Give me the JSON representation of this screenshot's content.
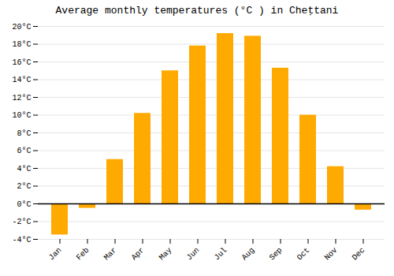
{
  "chart_data": {
    "type": "bar",
    "title": "Average monthly temperatures (°C ) in Cheṭtani",
    "categories": [
      "Jan",
      "Feb",
      "Mar",
      "Apr",
      "May",
      "Jun",
      "Jul",
      "Aug",
      "Sep",
      "Oct",
      "Nov",
      "Dec"
    ],
    "values": [
      -3.5,
      -0.5,
      5.0,
      10.2,
      15.0,
      17.8,
      19.2,
      18.9,
      15.3,
      10.0,
      4.2,
      -0.7
    ],
    "color": "#FFAA00",
    "ylim": [
      -4,
      20
    ],
    "yticks": [
      {
        "value": -4,
        "label": "-4°C"
      },
      {
        "value": -2,
        "label": "-2°C"
      },
      {
        "value": 0,
        "label": "0°C"
      },
      {
        "value": 2,
        "label": "2°C"
      },
      {
        "value": 4,
        "label": "4°C"
      },
      {
        "value": 6,
        "label": "6°C"
      },
      {
        "value": 8,
        "label": "8°C"
      },
      {
        "value": 10,
        "label": "10°C"
      },
      {
        "value": 12,
        "label": "12°C"
      },
      {
        "value": 14,
        "label": "14°C"
      },
      {
        "value": 16,
        "label": "16°C"
      },
      {
        "value": 18,
        "label": "18°C"
      },
      {
        "value": 20,
        "label": "20°C"
      }
    ],
    "grid": true
  }
}
